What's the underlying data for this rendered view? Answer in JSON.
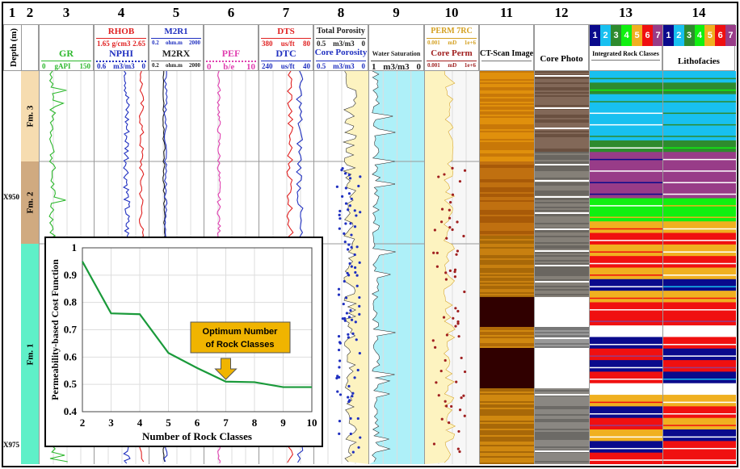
{
  "column_numbers": [
    "1",
    "2",
    "3",
    "4",
    "5",
    "6",
    "7",
    "8",
    "9",
    "10",
    "11",
    "12",
    "13",
    "14"
  ],
  "depth_header": "Depth (m)",
  "depth_labels": [
    "X950",
    "X975"
  ],
  "formations": [
    "Fm. 3",
    "Fm. 2",
    "Fm. 1"
  ],
  "tracks": {
    "gr": {
      "name": "GR",
      "min": "0",
      "unit": "gAPI",
      "max": "150",
      "color": "#2db82d"
    },
    "rhob": {
      "name": "RHOB",
      "min": "1.65",
      "unit": "g/cm3",
      "max": "2.65",
      "color": "#e02020"
    },
    "nphi": {
      "name": "NPHI",
      "min": "0.6",
      "unit": "m3/m3",
      "max": "0",
      "color": "#2030c0"
    },
    "m2r1": {
      "name": "M2R1",
      "min": "0.2",
      "unit": "ohm.m",
      "max": "2000",
      "color": "#2030c0"
    },
    "m2rx": {
      "name": "M2RX",
      "min": "0.2",
      "unit": "ohm.m",
      "max": "2000",
      "color": "#222222"
    },
    "pef": {
      "name": "PEF",
      "min": "0",
      "unit": "b/e",
      "max": "10",
      "color": "#e040b0"
    },
    "dts": {
      "name": "DTS",
      "min": "380",
      "unit": "us/ft",
      "max": "80",
      "color": "#e02020"
    },
    "dtc": {
      "name": "DTC",
      "min": "240",
      "unit": "us/ft",
      "max": "40",
      "color": "#2030c0"
    },
    "tpor": {
      "name": "Total Porosity",
      "min": "0.5",
      "unit": "m3/m3",
      "max": "0",
      "color": "#222222"
    },
    "cpor": {
      "name": "Core Porosity",
      "min": "0.5",
      "unit": "m3/m3",
      "max": "0",
      "color": "#2030c0"
    },
    "sw": {
      "name": "Water Saturation",
      "min": "1",
      "unit": "m3/m3",
      "max": "0",
      "color": "#222222"
    },
    "perm": {
      "name": "PERM 7RC",
      "min": "0.001",
      "unit": "mD",
      "max": "1e+6",
      "color": "#d4a020"
    },
    "cperm": {
      "name": "Core Perm",
      "min": "0.001",
      "unit": "mD",
      "max": "1e+6",
      "color": "#a02020"
    },
    "ct": {
      "name": "CT-Scan Image"
    },
    "photo": {
      "name": "Core Photo"
    },
    "irc": {
      "name": "Integrated Rock Classes"
    },
    "litho": {
      "name": "Lithofacies"
    }
  },
  "class_legend": {
    "labels": [
      "1",
      "2",
      "3",
      "4",
      "5",
      "6",
      "7"
    ],
    "colors": [
      "#0a0a8c",
      "#18c0f0",
      "#2e8b2e",
      "#10f010",
      "#f0b020",
      "#f01010",
      "#983c88"
    ]
  },
  "rock_class_sequence": {
    "irc": [
      2,
      3,
      2,
      2,
      2,
      2,
      3,
      7,
      7,
      7,
      7,
      4,
      4,
      5,
      6,
      5,
      6,
      5,
      1,
      5,
      6,
      6,
      0,
      1,
      6,
      1,
      6,
      0,
      5,
      1,
      6,
      5,
      1,
      6
    ],
    "litho": [
      2,
      3,
      2,
      2,
      2,
      2,
      3,
      7,
      7,
      7,
      7,
      4,
      4,
      5,
      6,
      5,
      6,
      5,
      1,
      5,
      6,
      6,
      0,
      6,
      1,
      6,
      1,
      0,
      5,
      6,
      5,
      1,
      6,
      6
    ]
  },
  "chart_data": {
    "type": "line",
    "title": "",
    "xlabel": "Number of Rock Classes",
    "ylabel": "Permeability-based Cost Function",
    "x": [
      2,
      3,
      4,
      5,
      6,
      7,
      8,
      9,
      10
    ],
    "series": [
      {
        "name": "Cost function",
        "color": "#1a9a3a",
        "values": [
          0.95,
          0.76,
          0.757,
          0.615,
          0.56,
          0.51,
          0.508,
          0.49,
          0.49
        ]
      }
    ],
    "xlim": [
      2,
      10
    ],
    "ylim": [
      0.4,
      1
    ],
    "xticks": [
      "2",
      "3",
      "4",
      "5",
      "6",
      "7",
      "8",
      "9",
      "10"
    ],
    "yticks": [
      "0.4",
      "0.5",
      "0.6",
      "0.7",
      "0.8",
      "0.9",
      "1"
    ],
    "grid": true,
    "annotation": {
      "text_line1": "Optimum Number",
      "text_line2": "of Rock Classes",
      "x": 7,
      "color": "#f0b400"
    }
  }
}
